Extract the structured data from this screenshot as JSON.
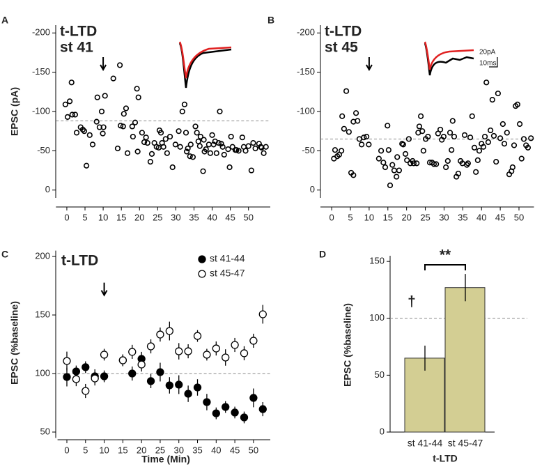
{
  "chart_data": [
    {
      "type": "scatter",
      "panel": "A",
      "title": "t-LTD",
      "subtitle": "st 41",
      "y_label": "EPSC (pA)",
      "x": [
        -0.4,
        0.2,
        0.8,
        1.3,
        1.5,
        2.3,
        2.7,
        3.8,
        4.4,
        4.8,
        5.4,
        6.3,
        7.1,
        8.2,
        8.4,
        9.0,
        9.6,
        9.9,
        10.1,
        10.5,
        12.8,
        14.0,
        14.6,
        14.8,
        15.5,
        15.7,
        16.3,
        16.7,
        18.0,
        18.2,
        18.8,
        19.3,
        19.5,
        19.7,
        20.7,
        21.3,
        21.8,
        22.2,
        23.0,
        23.4,
        24.1,
        24.7,
        25.3,
        25.5,
        25.9,
        26.2,
        26.6,
        27.2,
        27.6,
        28.4,
        29.1,
        29.9,
        30.8,
        31.2,
        31.8,
        32.4,
        32.8,
        33.0,
        33.3,
        33.9,
        34.1,
        34.7,
        35.4,
        35.8,
        36.2,
        36.6,
        36.8,
        37.5,
        37.7,
        37.9,
        38.3,
        39.1,
        39.5,
        40.0,
        40.4,
        40.8,
        41.2,
        41.8,
        42.1,
        42.5,
        42.9,
        43.3,
        44.4,
        44.8,
        45.2,
        45.6,
        46.4,
        46.7,
        47.3,
        48.3,
        48.7,
        49.2,
        50.0,
        50.8,
        51.3,
        51.9,
        52.9,
        53.4,
        53.6,
        54.2,
        54.8
      ],
      "values": [
        -109,
        -93,
        -113,
        -137,
        -96,
        -96,
        -73,
        -80,
        -77,
        -75,
        -31,
        -70,
        -58,
        -87,
        -118,
        -80,
        -100,
        -72,
        -80,
        -120,
        -142,
        -53,
        -159,
        -82,
        -81,
        -97,
        -104,
        -47,
        -81,
        -68,
        -86,
        -129,
        -49,
        -118,
        -73,
        -61,
        -67,
        -60,
        -36,
        -46,
        -60,
        -55,
        -54,
        -76,
        -73,
        -60,
        -55,
        -65,
        -47,
        -68,
        -29,
        -58,
        -75,
        -55,
        -100,
        -109,
        -73,
        -49,
        -53,
        -43,
        -58,
        -42,
        -81,
        -73,
        -62,
        -56,
        -68,
        -24,
        -64,
        -49,
        -52,
        -58,
        -47,
        -70,
        -58,
        -62,
        -47,
        -60,
        -100,
        -59,
        -55,
        -45,
        -52,
        -29,
        -68,
        -55,
        -51,
        -51,
        -50,
        -67,
        -55,
        -50,
        -56,
        -25,
        -60,
        -53,
        -59,
        -55,
        -54,
        -47,
        -55
      ],
      "xlim": [
        -3,
        56
      ],
      "xticks": [
        0,
        5,
        10,
        15,
        20,
        25,
        30,
        35,
        40,
        45,
        50
      ],
      "ylim": [
        10,
        -210
      ],
      "yticks": [
        -200,
        -150,
        -100,
        -50,
        0
      ],
      "baseline": -88,
      "arrow_x": 10
    },
    {
      "type": "scatter",
      "panel": "B",
      "title": "t-LTD",
      "subtitle": "st 45",
      "scale_bar": [
        "20pA",
        "10ms"
      ],
      "x": [
        0.6,
        0.9,
        1.5,
        2.0,
        2.6,
        2.8,
        3.3,
        3.9,
        4.6,
        5.2,
        5.8,
        5.8,
        6.5,
        6.9,
        7.4,
        8.0,
        8.6,
        9.3,
        9.9,
        12.6,
        13.2,
        13.8,
        14.3,
        14.9,
        15.2,
        15.6,
        16.2,
        16.7,
        17.3,
        17.5,
        18.0,
        18.8,
        19.1,
        19.7,
        20.1,
        20.6,
        21.0,
        21.6,
        21.9,
        22.7,
        23.1,
        23.4,
        23.8,
        24.2,
        24.5,
        25.1,
        25.7,
        26.2,
        26.8,
        27.3,
        27.9,
        28.4,
        29.0,
        29.4,
        29.9,
        30.5,
        31.0,
        31.6,
        32.0,
        32.3,
        32.7,
        33.3,
        33.8,
        34.4,
        34.9,
        35.5,
        36.1,
        36.4,
        37.0,
        37.5,
        38.1,
        38.5,
        39.0,
        39.4,
        40.0,
        40.5,
        40.9,
        41.3,
        41.8,
        42.4,
        42.9,
        43.3,
        43.9,
        44.4,
        45.0,
        45.7,
        46.1,
        46.8,
        47.4,
        48.0,
        48.3,
        48.7,
        49.1,
        49.6,
        50.2,
        50.7,
        51.3,
        51.9,
        52.4,
        53.2
      ],
      "values": [
        -40,
        -51,
        -43,
        -45,
        -50,
        -94,
        -78,
        -126,
        -74,
        -22,
        -19,
        -87,
        -98,
        -88,
        -65,
        -58,
        -67,
        -68,
        -58,
        -40,
        -50,
        -35,
        -29,
        -82,
        -51,
        -6,
        -32,
        -25,
        -17,
        -42,
        -25,
        -59,
        -58,
        -46,
        -38,
        -65,
        -34,
        -37,
        -34,
        -34,
        -73,
        -81,
        -94,
        -75,
        -50,
        -65,
        -68,
        -35,
        -35,
        -33,
        -33,
        -72,
        -77,
        -64,
        -68,
        -29,
        -37,
        -73,
        -51,
        -88,
        -68,
        -17,
        -21,
        -37,
        -34,
        -70,
        -32,
        -34,
        -67,
        -94,
        -54,
        -23,
        -38,
        -50,
        -59,
        -55,
        -68,
        -137,
        -61,
        -76,
        -115,
        -69,
        -36,
        -123,
        -66,
        -84,
        -59,
        -73,
        -20,
        -24,
        -29,
        -57,
        -107,
        -109,
        -84,
        -40,
        -65,
        -57,
        -54,
        -66
      ],
      "xlim": [
        -3,
        54
      ],
      "xticks": [
        0,
        5,
        10,
        15,
        20,
        25,
        30,
        35,
        40,
        45,
        50
      ],
      "ylim": [
        10,
        -210
      ],
      "yticks": [
        -200,
        -150,
        -100,
        -50,
        0
      ],
      "baseline": -65,
      "arrow_x": 10
    },
    {
      "type": "errorbar",
      "panel": "C",
      "title": "t-LTD",
      "x_label": "Time (Min)",
      "y_label": "EPSC (%baseline)",
      "x": [
        0,
        2.5,
        5,
        7.5,
        10,
        15,
        17.5,
        20,
        22.5,
        25,
        27.5,
        30,
        32.5,
        35,
        37.5,
        40,
        42.5,
        45,
        47.5,
        50,
        52.5
      ],
      "series": [
        {
          "name": "st 41-44",
          "filled": true,
          "color": "#000000",
          "values": [
            97,
            101.8,
            105.4,
            97.6,
            97.6,
            111.3,
            100,
            112.5,
            93.5,
            101.2,
            89.9,
            90.5,
            82.7,
            88.1,
            75.6,
            66,
            71.4,
            66.7,
            62.5,
            79.2,
            69.6
          ],
          "errors": [
            8,
            5,
            5,
            6,
            5,
            5,
            6,
            6,
            6,
            8,
            7,
            8,
            7,
            7,
            7,
            5,
            5,
            5,
            5,
            8,
            6
          ]
        },
        {
          "name": "st 45-47",
          "filled": false,
          "color": "#000000",
          "values": [
            110.7,
            95.2,
            85.1,
            95.8,
            116.1,
            111.3,
            118.5,
            107.7,
            123.2,
            133.3,
            136.3,
            119,
            119,
            132.1,
            116.1,
            121.4,
            113.7,
            124.4,
            117.3,
            128,
            150.6
          ],
          "errors": [
            8,
            6,
            6,
            6,
            5,
            5,
            6,
            6,
            6,
            6,
            8,
            7,
            6,
            5,
            5,
            6,
            7,
            6,
            6,
            6,
            8
          ]
        }
      ],
      "xlim": [
        -2.5,
        54.5
      ],
      "xticks": [
        0,
        5,
        10,
        15,
        20,
        25,
        30,
        35,
        40,
        45,
        50
      ],
      "ylim": [
        45,
        205
      ],
      "yticks": [
        50,
        100,
        150,
        200
      ],
      "baseline": 100,
      "arrow_x": 10
    },
    {
      "type": "bar",
      "panel": "D",
      "x_label": "t-LTD",
      "y_label": "EPSC (%baseline)",
      "categories": [
        "st 41-44",
        "st 45-47"
      ],
      "values": [
        65,
        127
      ],
      "errors": [
        11,
        12
      ],
      "color": "#d3ce93",
      "ylim": [
        0,
        155
      ],
      "yticks": [
        0,
        50,
        100,
        150
      ],
      "baseline": 100,
      "annotations": [
        "**",
        "†"
      ]
    }
  ]
}
